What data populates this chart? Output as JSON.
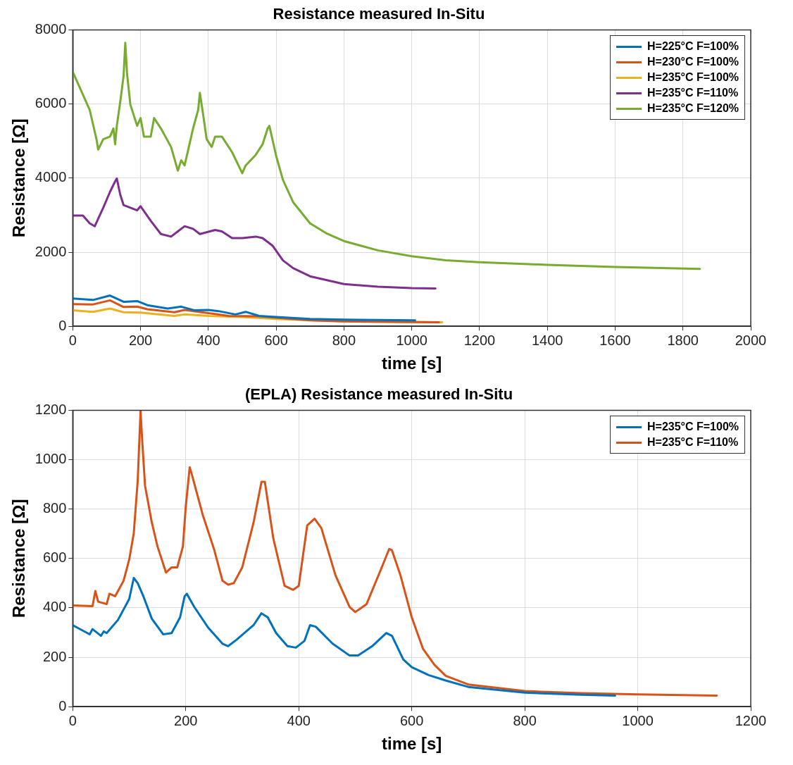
{
  "chart_data": [
    {
      "type": "line",
      "title": "Resistance measured In-Situ",
      "xlabel": "time [s]",
      "ylabel": "Resistance [Ω]",
      "xlim": [
        0,
        2000
      ],
      "xticks": [
        0,
        200,
        400,
        600,
        800,
        1000,
        1200,
        1400,
        1600,
        1800,
        2000
      ],
      "ylim": [
        0,
        8000
      ],
      "yticks": [
        0,
        2000,
        4000,
        6000,
        8000
      ],
      "grid": true,
      "legend": "top right",
      "series": [
        {
          "name": "H=225°C F=100%",
          "color": "#0072bd",
          "x": [
            0,
            60,
            110,
            150,
            190,
            220,
            280,
            320,
            360,
            400,
            430,
            480,
            510,
            550,
            600,
            700,
            800,
            1010
          ],
          "values": [
            750,
            710,
            830,
            660,
            680,
            570,
            480,
            530,
            430,
            440,
            410,
            320,
            390,
            280,
            250,
            200,
            180,
            160
          ]
        },
        {
          "name": "H=230°C F=100%",
          "color": "#d95319",
          "x": [
            0,
            60,
            110,
            150,
            190,
            220,
            300,
            330,
            380,
            420,
            460,
            550,
            600,
            700,
            800,
            1080
          ],
          "values": [
            600,
            590,
            700,
            520,
            530,
            460,
            380,
            440,
            380,
            330,
            280,
            270,
            230,
            160,
            130,
            110
          ]
        },
        {
          "name": "H=235°C F=100%",
          "color": "#edb120",
          "x": [
            0,
            60,
            110,
            150,
            200,
            300,
            330,
            400,
            500,
            600,
            800,
            1090
          ],
          "values": [
            430,
            390,
            480,
            380,
            370,
            280,
            320,
            280,
            250,
            200,
            130,
            110
          ]
        },
        {
          "name": "H=235°C F=110%",
          "color": "#7e2f8e",
          "x": [
            0,
            30,
            50,
            65,
            90,
            110,
            125,
            130,
            140,
            150,
            170,
            190,
            200,
            230,
            260,
            290,
            310,
            330,
            355,
            375,
            420,
            440,
            470,
            500,
            540,
            560,
            590,
            620,
            650,
            700,
            800,
            900,
            1000,
            1070
          ],
          "values": [
            2990,
            2990,
            2780,
            2700,
            3200,
            3630,
            3910,
            3990,
            3560,
            3270,
            3200,
            3130,
            3240,
            2850,
            2490,
            2420,
            2560,
            2700,
            2630,
            2490,
            2600,
            2560,
            2380,
            2380,
            2420,
            2380,
            2170,
            1780,
            1570,
            1350,
            1140,
            1070,
            1030,
            1020
          ]
        },
        {
          "name": "H=235°C F=120%",
          "color": "#77ac30",
          "x": [
            0,
            50,
            70,
            75,
            90,
            110,
            120,
            125,
            130,
            140,
            150,
            155,
            160,
            170,
            190,
            200,
            210,
            230,
            240,
            260,
            290,
            310,
            320,
            330,
            355,
            370,
            375,
            385,
            395,
            410,
            420,
            440,
            470,
            500,
            510,
            540,
            560,
            575,
            580,
            600,
            620,
            650,
            700,
            750,
            800,
            900,
            1000,
            1100,
            1200,
            1400,
            1600,
            1850
          ],
          "values": [
            6870,
            5840,
            5050,
            4770,
            5050,
            5120,
            5340,
            4910,
            5410,
            6050,
            6760,
            7650,
            6830,
            5980,
            5410,
            5620,
            5120,
            5120,
            5620,
            5340,
            4840,
            4200,
            4480,
            4340,
            5340,
            5840,
            6300,
            5690,
            5050,
            4840,
            5120,
            5120,
            4700,
            4130,
            4340,
            4630,
            4910,
            5340,
            5410,
            4600,
            3950,
            3350,
            2780,
            2500,
            2300,
            2050,
            1890,
            1780,
            1730,
            1660,
            1600,
            1550
          ]
        }
      ]
    },
    {
      "type": "line",
      "title": "(EPLA) Resistance measured In-Situ",
      "xlabel": "time [s]",
      "ylabel": "Resistance [Ω]",
      "xlim": [
        0,
        1200
      ],
      "xticks": [
        0,
        200,
        400,
        600,
        800,
        1000,
        1200
      ],
      "ylim": [
        0,
        1200
      ],
      "yticks": [
        0,
        200,
        400,
        600,
        800,
        1000,
        1200
      ],
      "grid": true,
      "legend": "top right",
      "series": [
        {
          "name": "H=235°C F=100%",
          "color": "#0072bd",
          "x": [
            0,
            30,
            35,
            50,
            55,
            60,
            80,
            100,
            108,
            115,
            125,
            140,
            160,
            175,
            190,
            198,
            202,
            215,
            240,
            265,
            275,
            290,
            320,
            334,
            345,
            360,
            380,
            395,
            410,
            420,
            430,
            460,
            490,
            505,
            530,
            555,
            565,
            585,
            600,
            630,
            660,
            700,
            800,
            900,
            960
          ],
          "values": [
            330,
            293,
            314,
            287,
            305,
            298,
            351,
            436,
            521,
            500,
            447,
            356,
            293,
            298,
            362,
            447,
            457,
            404,
            319,
            255,
            245,
            271,
            330,
            378,
            362,
            298,
            245,
            239,
            266,
            330,
            324,
            255,
            207,
            207,
            245,
            298,
            287,
            191,
            160,
            128,
            106,
            80,
            57,
            48,
            45
          ]
        },
        {
          "name": "H=235°C F=110%",
          "color": "#d95319",
          "x": [
            0,
            35,
            40,
            45,
            60,
            65,
            75,
            90,
            100,
            108,
            115,
            120,
            123,
            128,
            140,
            150,
            165,
            175,
            185,
            195,
            200,
            207,
            210,
            230,
            250,
            265,
            275,
            285,
            300,
            320,
            334,
            340,
            355,
            375,
            390,
            400,
            415,
            428,
            440,
            465,
            490,
            500,
            520,
            545,
            560,
            565,
            580,
            600,
            620,
            640,
            660,
            700,
            800,
            900,
            1000,
            1140
          ],
          "values": [
            410,
            407,
            468,
            425,
            415,
            457,
            447,
            510,
            596,
            702,
            915,
            1197,
            1075,
            894,
            745,
            649,
            543,
            564,
            564,
            649,
            809,
            969,
            947,
            777,
            638,
            510,
            494,
            500,
            564,
            745,
            910,
            910,
            681,
            489,
            473,
            489,
            734,
            761,
            723,
            532,
            404,
            383,
            415,
            553,
            638,
            633,
            532,
            362,
            234,
            170,
            125,
            90,
            63,
            55,
            50,
            45
          ]
        }
      ]
    }
  ]
}
